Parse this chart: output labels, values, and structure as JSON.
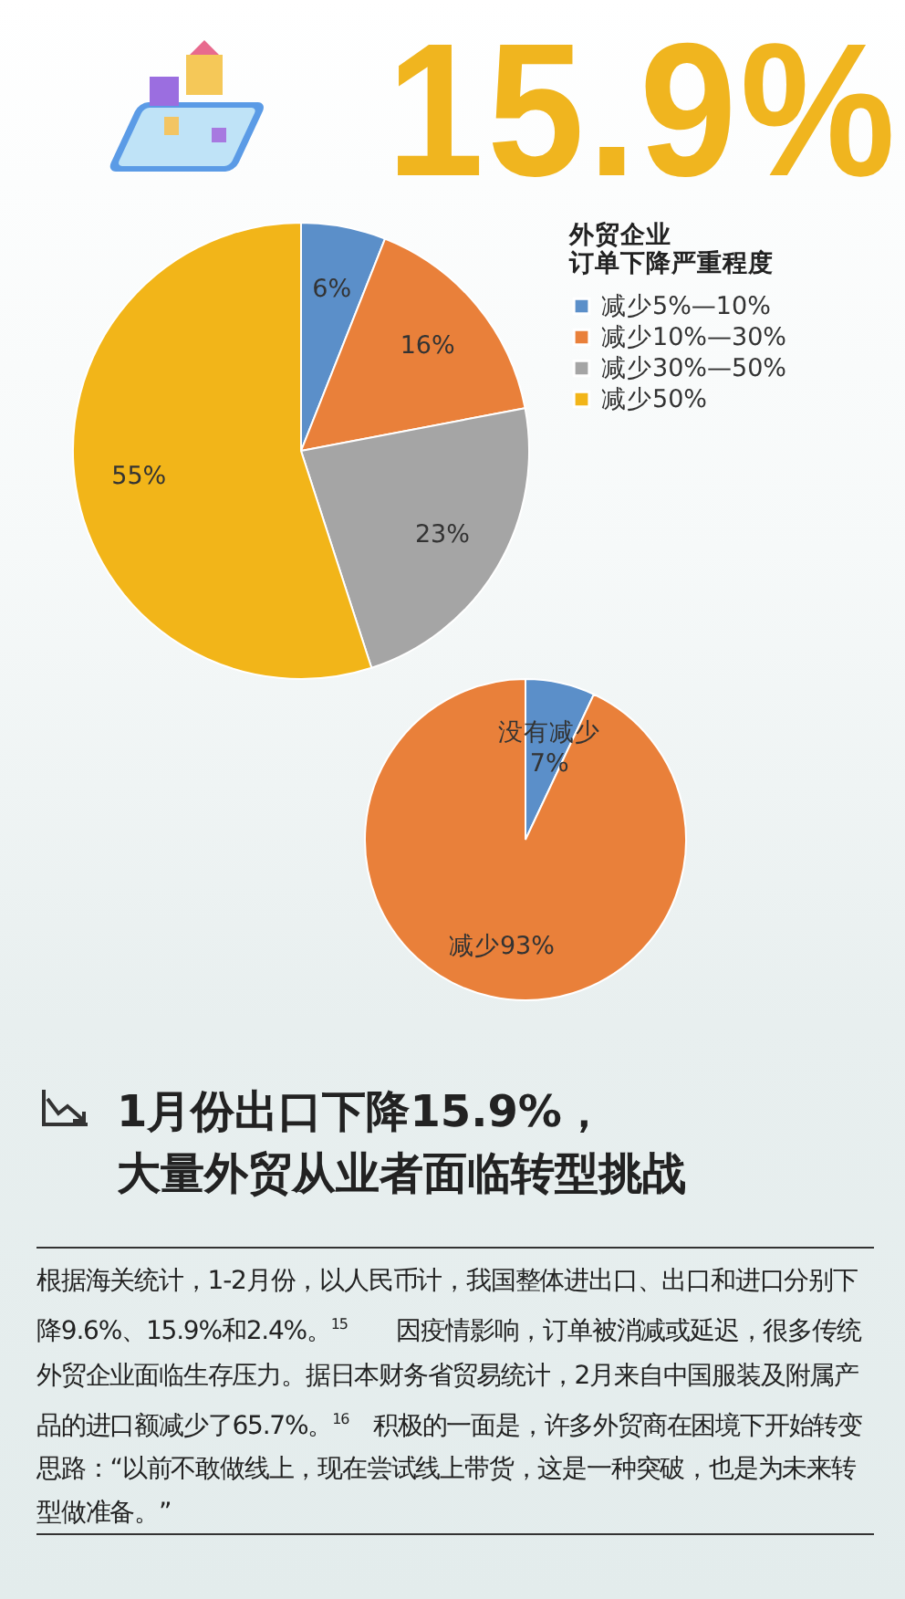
{
  "chart_data": [
    {
      "type": "pie",
      "legend_title": "外贸企业订单下降严重程度",
      "categories": [
        "减少5%—10%",
        "减少10%—30%",
        "减少30%—50%",
        "减少50%"
      ],
      "values": [
        6,
        16,
        23,
        55
      ],
      "colors": [
        "#5b8fc9",
        "#e9803a",
        "#a5a5a5",
        "#f2b519"
      ],
      "value_labels": [
        "6%",
        "16%",
        "23%",
        "55%"
      ],
      "legend": "right"
    },
    {
      "type": "pie",
      "categories": [
        "没有减少",
        "减少"
      ],
      "values": [
        7,
        93
      ],
      "colors": [
        "#5b8fc9",
        "#e9803a"
      ],
      "value_labels": [
        "7%",
        "93%"
      ]
    },
    {
      "type": "other",
      "title": "1月份出口下降15.9%，大量外贸从业者面临转型挑战",
      "annotations": [
        "15.9%",
        "根据海关统计，1-2月份，以人民币计，我国整体进出口、出口和进口分别下降9.6%、15.9%和2.4%。$^{15}$　　因疫情影响，订单被消减或延迟，很多传统外贸企业面临生存压力。据日本财务省贸易统计，2月来自中国服装及附属产品的进口额减少了65.7%。$^{16}$　积极的一面是，许多外贸商在困境下开始转变思路：“以前不敢做线上，现在尝试线上带货，这是一种突破，也是为未来转型做准备。”"
      ]
    }
  ]
}
